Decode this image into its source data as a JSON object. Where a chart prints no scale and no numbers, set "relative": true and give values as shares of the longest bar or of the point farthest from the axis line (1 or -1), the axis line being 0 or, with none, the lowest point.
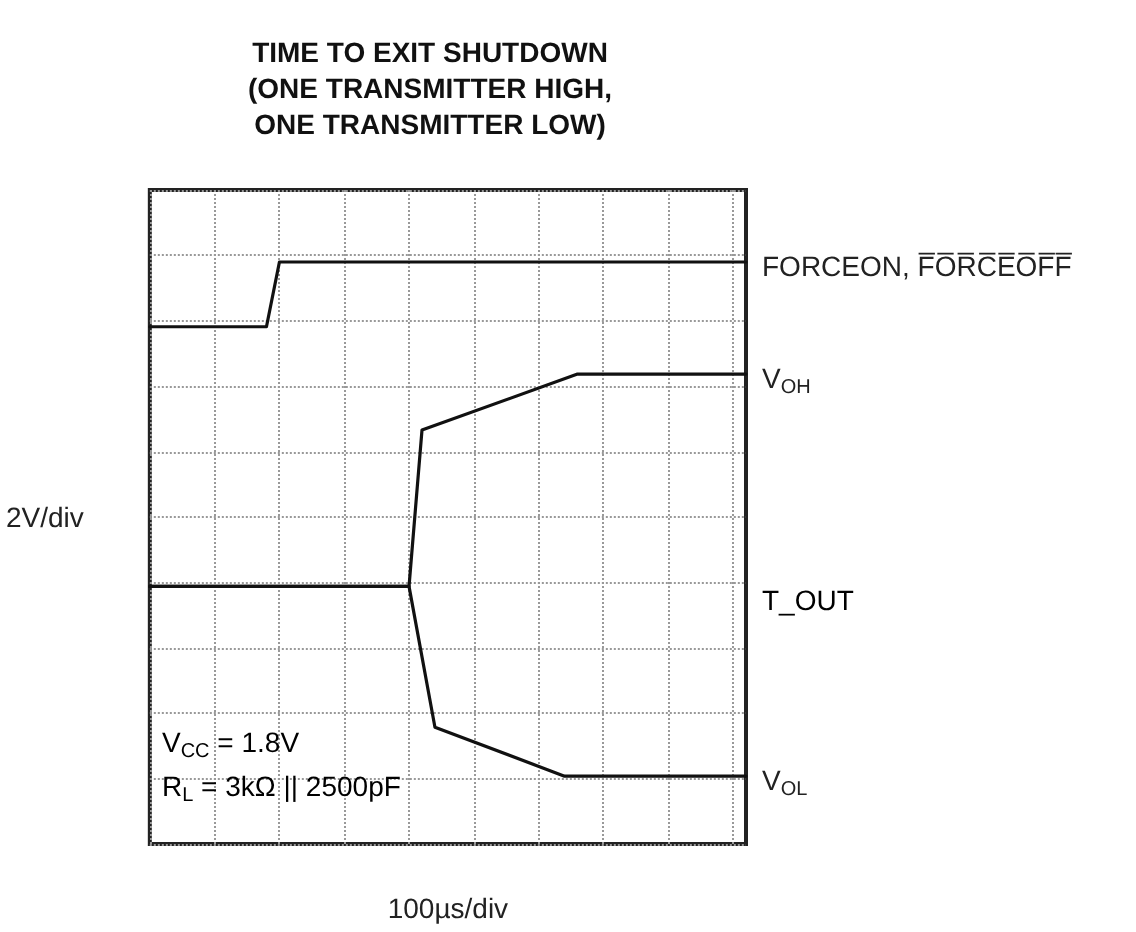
{
  "chart_data": {
    "type": "line",
    "title": "TIME TO EXIT SHUTDOWN\n(ONE TRANSMITTER HIGH,\nONE TRANSMITTER LOW)",
    "xlabel": "100µs/div",
    "ylabel": "2V/div",
    "relative": true,
    "grid": true,
    "legend": false,
    "marker": "none",
    "line_style": "solid",
    "categories": [
      null,
      null,
      null,
      null,
      null,
      null,
      null,
      null,
      null,
      null,
      null,
      null,
      null,
      null,
      null,
      null,
      null,
      null,
      null,
      null,
      null,
      null,
      null,
      null,
      null,
      null,
      null,
      null,
      null,
      null,
      null,
      null,
      null,
      null,
      null,
      null,
      null,
      null,
      null,
      null,
      null,
      null,
      null,
      null,
      null,
      null,
      null
    ],
    "series": [
      {
        "name": "FORCEON, F̅O̅R̅C̅E̅O̅F̅F̅",
        "color": "#111111",
        "values": [
          0.874,
          null,
          null,
          null,
          null,
          null,
          null,
          null,
          null,
          0.874,
          1.0,
          null,
          null,
          null,
          null,
          null,
          null,
          null,
          null,
          null,
          null,
          null,
          null,
          null,
          null,
          null,
          null,
          null,
          null,
          null,
          null,
          null,
          null,
          null,
          null,
          null,
          null,
          null,
          null,
          null,
          null,
          null,
          null,
          null,
          null,
          null,
          1.0
        ]
      },
      {
        "name": "V$_{OH}$",
        "color": "#111111",
        "values": [
          0.369,
          null,
          null,
          null,
          null,
          null,
          null,
          null,
          null,
          null,
          null,
          null,
          null,
          null,
          null,
          null,
          null,
          null,
          null,
          null,
          0.369,
          0.673,
          null,
          null,
          null,
          null,
          null,
          null,
          null,
          null,
          null,
          null,
          null,
          0.782,
          null,
          null,
          null,
          null,
          null,
          null,
          null,
          null,
          null,
          null,
          null,
          null,
          0.782
        ]
      },
      {
        "name": "V$_{OL}$",
        "color": "#111111",
        "values": [
          0.369,
          null,
          null,
          null,
          null,
          null,
          null,
          null,
          null,
          null,
          null,
          null,
          null,
          null,
          null,
          null,
          null,
          null,
          null,
          null,
          0.369,
          null,
          0.095,
          null,
          null,
          null,
          null,
          null,
          null,
          null,
          null,
          null,
          0,
          null,
          null,
          null,
          null,
          null,
          null,
          null,
          null,
          null,
          null,
          null,
          null,
          null,
          0
        ]
      }
    ],
    "annotations": [
      "T_OUT",
      "V$_{CC}$ = 1.8V",
      "R$_{L}$ = 3kΩ || 2500pF"
    ]
  }
}
